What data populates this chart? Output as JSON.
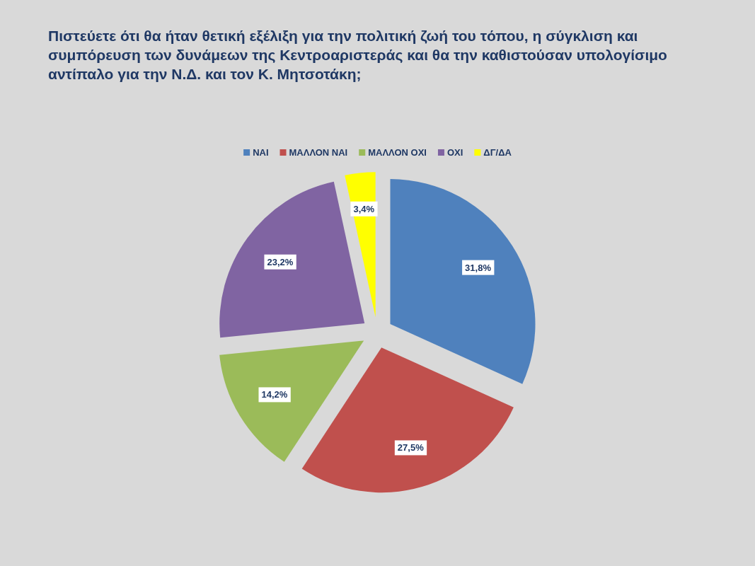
{
  "chart_data": {
    "type": "pie",
    "title": "Πιστεύετε ότι θα ήταν θετική εξέλιξη για την πολιτική ζωή του τόπου, η σύγκλιση και συμπόρευση των δυνάμεων της Κεντροαριστεράς και θα την καθιστούσαν υπολογίσιμο αντίπαλο για την Ν.Δ. και τον Κ. Μητσοτάκη;",
    "categories": [
      "ΝΑΙ",
      "ΜΑΛΛΟΝ ΝΑΙ",
      "ΜΑΛΛΟΝ ΟΧΙ",
      "ΟΧΙ",
      "ΔΓ/ΔΑ"
    ],
    "values": [
      31.8,
      27.5,
      14.2,
      23.2,
      3.4
    ],
    "colors": [
      "#4f81bd",
      "#c0504d",
      "#9bbb59",
      "#8064a2",
      "#ffff00"
    ],
    "value_labels": [
      "31,8%",
      "27,5%",
      "14,2%",
      "23,2%",
      "3,4%"
    ],
    "legend": "top"
  }
}
